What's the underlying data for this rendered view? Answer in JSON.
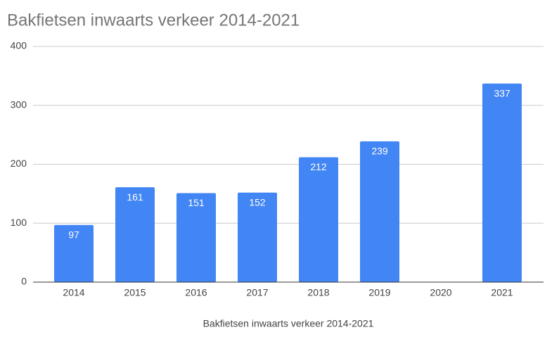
{
  "chart_data": {
    "type": "bar",
    "title": "Bakfietsen inwaarts verkeer 2014-2021",
    "xlabel": "Bakfietsen inwaarts verkeer 2014-2021",
    "categories": [
      "2014",
      "2015",
      "2016",
      "2017",
      "2018",
      "2019",
      "2020",
      "2021"
    ],
    "values": [
      97,
      161,
      151,
      152,
      212,
      239,
      null,
      337
    ],
    "color": "#4285f4",
    "ylim": [
      0,
      400
    ],
    "yticks": [
      0,
      100,
      200,
      300,
      400
    ],
    "grid": true
  }
}
